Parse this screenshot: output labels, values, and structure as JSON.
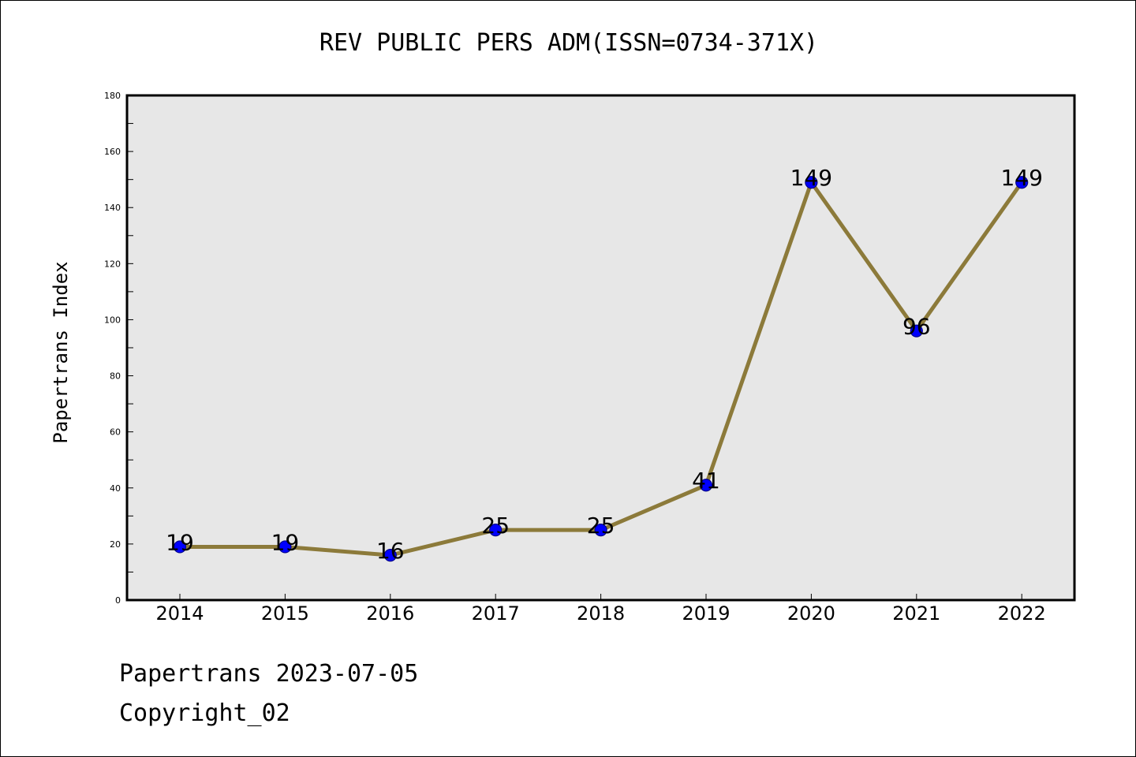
{
  "chart_data": {
    "type": "line",
    "title": "REV PUBLIC PERS ADM(ISSN=0734-371X)",
    "xlabel": "",
    "ylabel": "Papertrans Index",
    "categories": [
      "2014",
      "2015",
      "2016",
      "2017",
      "2018",
      "2019",
      "2020",
      "2021",
      "2022"
    ],
    "series": [
      {
        "values": [
          19,
          19,
          16,
          25,
          25,
          41,
          149,
          96,
          149
        ]
      }
    ],
    "data_labels": [
      "19",
      "19",
      "16",
      "25",
      "25",
      "41",
      "149",
      "96",
      "149"
    ],
    "ylim": [
      0,
      180
    ],
    "yticks": [
      0,
      20,
      40,
      60,
      80,
      100,
      120,
      140,
      160,
      180
    ],
    "grid": false,
    "legend": "none",
    "colors": {
      "line": "#8c7a3a",
      "marker_fill": "#0000ff",
      "marker_edge": "#00008b",
      "plot_background": "#e7e7e7",
      "frame": "#000000"
    }
  },
  "footer": {
    "date_text": "Papertrans 2023-07-05",
    "copyright_text": "Copyright_02"
  }
}
